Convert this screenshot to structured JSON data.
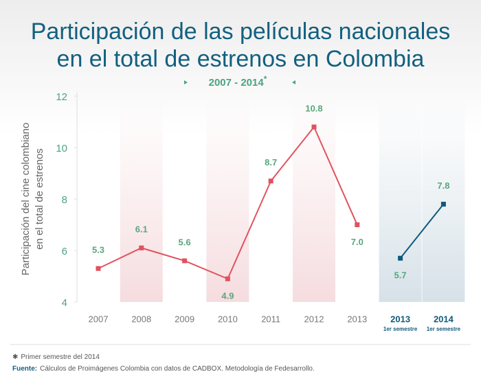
{
  "chart_data": {
    "type": "line",
    "title_lines": [
      "Participación de las películas nacionales",
      "en el total de estrenos en Colombia"
    ],
    "subtitle": "2007 - 2014",
    "subtitle_marker": "*",
    "y_label_lines": [
      "Participación del cine colombiano",
      "en el total de estrenos"
    ],
    "categories": [
      "2007",
      "2008",
      "2009",
      "2010",
      "2011",
      "2012",
      "2013",
      "2013",
      "2014"
    ],
    "category_sublabels": [
      null,
      null,
      null,
      null,
      null,
      null,
      null,
      "1er semestre",
      "1er semestre"
    ],
    "series": [
      {
        "color": "#e0525e",
        "values": [
          5.3,
          6.1,
          5.6,
          4.9,
          8.7,
          10.8,
          7.0,
          null,
          null
        ],
        "value_labels": [
          "5.3",
          "6.1",
          "5.6",
          "4.9",
          "8.7",
          "10.8",
          "7.0",
          null,
          null
        ]
      },
      {
        "color": "#0f5a7c",
        "values": [
          null,
          null,
          null,
          null,
          null,
          null,
          null,
          5.7,
          7.8
        ],
        "value_labels": [
          null,
          null,
          null,
          null,
          null,
          null,
          null,
          "5.7",
          "7.8"
        ]
      }
    ],
    "ylim": [
      4,
      12
    ],
    "yticks": [
      4,
      6,
      8,
      10,
      12
    ],
    "note_marker": "✱",
    "note": "Primer semestre del 2014",
    "source_label": "Fuente:",
    "source": "Cálculos de Proimágenes Colombia con datos de CADBOX. Metodología de Fedesarrollo."
  }
}
